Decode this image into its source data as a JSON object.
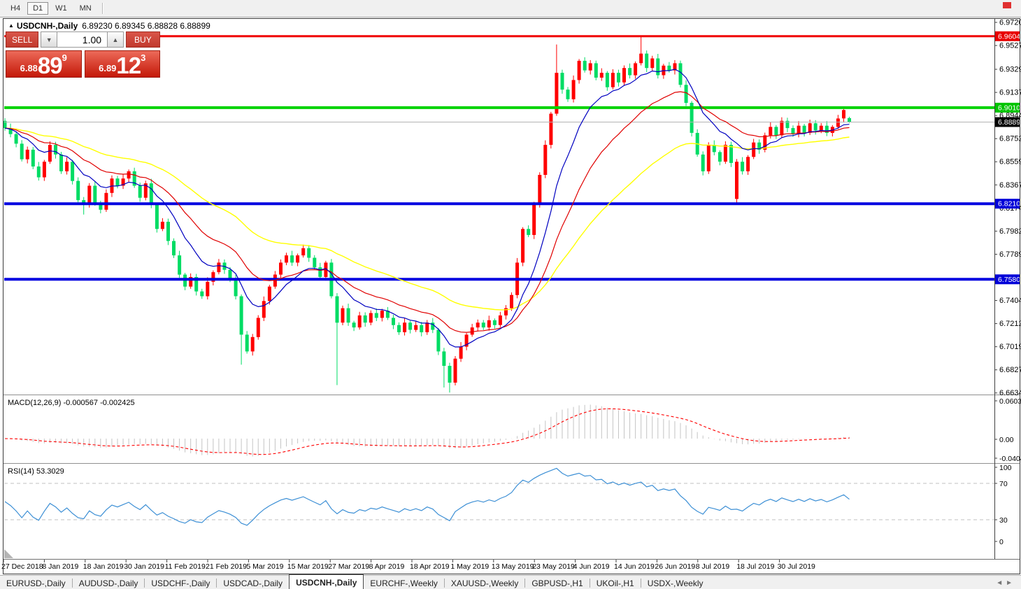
{
  "toolbar": {
    "timeframes": [
      "H4",
      "D1",
      "W1",
      "MN"
    ],
    "active_timeframe": "D1"
  },
  "icons": {
    "title_marker": "▲",
    "spinner_down": "▼",
    "spinner_up": "▲",
    "tab_scroll_left": "◄",
    "tab_scroll_right": "►"
  },
  "window": {
    "symbol_line": "USDCNH-,Daily",
    "ohlc_line": "6.89230 6.89345 6.88828 6.88899"
  },
  "trade": {
    "sell_label": "SELL",
    "buy_label": "BUY",
    "volume": "1.00",
    "sell_price": {
      "prefix": "6.88",
      "big": "89",
      "sup": "9"
    },
    "buy_price": {
      "prefix": "6.89",
      "big": "12",
      "sup": "3"
    }
  },
  "chart_data": {
    "type": "candlestick",
    "title": "USDCNH-,Daily",
    "price_axis": {
      "ticks": [
        "6.97200",
        "6.95275",
        "6.93295",
        "6.91370",
        "6.89445",
        "6.87520",
        "6.85595",
        "6.83670",
        "6.81745",
        "6.79820",
        "6.77895",
        "6.74045",
        "6.72120",
        "6.70195",
        "6.68270",
        "6.66345"
      ],
      "badges": [
        {
          "value": "6.96044",
          "bg": "#e80000"
        },
        {
          "value": "6.90100",
          "bg": "#00c400"
        },
        {
          "value": "6.88899",
          "bg": "#000000"
        },
        {
          "value": "6.82103",
          "bg": "#0000d8"
        },
        {
          "value": "6.75804",
          "bg": "#0000d8"
        }
      ]
    },
    "hlines": [
      {
        "price": 6.88899,
        "color": "#b4b4b4",
        "width": 1
      },
      {
        "price": 6.96044,
        "color": "#f00000",
        "width": 3
      },
      {
        "price": 6.901,
        "color": "#00d300",
        "width": 4
      },
      {
        "price": 6.82103,
        "color": "#0000e0",
        "width": 4
      },
      {
        "price": 6.75804,
        "color": "#0000e0",
        "width": 4
      }
    ],
    "colors": {
      "up_candle": "#ff0000",
      "down_candle": "#00dc64",
      "ma_fast": "#0000c0",
      "ma_medium": "#e00000",
      "ma_slow": "#ffff00",
      "macd_bar": "#c4c4c4",
      "macd_signal": "#ff0000",
      "rsi_line": "#3c8fd5"
    },
    "ma_periods": {
      "fast": 10,
      "medium": 21,
      "slow": 45
    },
    "candles": {
      "first_open": 6.89,
      "gap_opens": {
        "130": 6.825
      },
      "wick_high_overrides": {
        "98": 6.9536,
        "113": 6.9604
      },
      "wick_low_overrides": {
        "14": 6.812,
        "42": 6.687,
        "59": 6.67,
        "78": 6.668,
        "79": 6.6638,
        "130": 6.821
      },
      "last_ohlc": [
        6.8923,
        6.89345,
        6.88828,
        6.88899
      ],
      "closes": [
        6.884,
        6.879,
        6.871,
        6.858,
        6.866,
        6.852,
        6.843,
        6.856,
        6.87,
        6.862,
        6.848,
        6.856,
        6.84,
        6.824,
        6.82,
        6.836,
        6.822,
        6.816,
        6.83,
        6.842,
        6.836,
        6.842,
        6.848,
        6.836,
        6.826,
        6.838,
        6.82,
        6.8,
        6.806,
        6.79,
        6.778,
        6.762,
        6.752,
        6.76,
        6.748,
        6.744,
        6.756,
        6.764,
        6.772,
        6.766,
        6.758,
        6.744,
        6.712,
        6.698,
        6.71,
        6.726,
        6.74,
        6.752,
        6.762,
        6.772,
        6.778,
        6.772,
        6.778,
        6.784,
        6.776,
        6.768,
        6.76,
        6.772,
        6.744,
        6.722,
        6.734,
        6.722,
        6.718,
        6.728,
        6.722,
        6.73,
        6.726,
        6.732,
        6.726,
        6.72,
        6.714,
        6.722,
        6.716,
        6.72,
        6.714,
        6.722,
        6.716,
        6.698,
        6.686,
        6.672,
        6.692,
        6.702,
        6.712,
        6.718,
        6.722,
        6.718,
        6.724,
        6.72,
        6.728,
        6.734,
        6.745,
        6.772,
        6.8,
        6.795,
        6.82,
        6.845,
        6.87,
        6.896,
        6.93,
        6.916,
        6.908,
        6.924,
        6.94,
        6.932,
        6.938,
        6.926,
        6.93,
        6.918,
        6.93,
        6.922,
        6.934,
        6.928,
        6.938,
        6.946,
        6.934,
        6.942,
        6.928,
        6.936,
        6.932,
        6.938,
        6.92,
        6.905,
        6.88,
        6.862,
        6.848,
        6.87,
        6.864,
        6.856,
        6.87,
        6.855,
        6.856,
        6.848,
        6.86,
        6.872,
        6.866,
        6.878,
        6.885,
        6.878,
        6.89,
        6.884,
        6.879,
        6.886,
        6.88,
        6.888,
        6.882,
        6.886,
        6.88,
        6.885,
        6.892,
        6.899,
        6.88899
      ]
    },
    "macd": {
      "title": "MACD(12,26,9)",
      "values": "-0.000567 -0.002425",
      "params": [
        12,
        26,
        9
      ],
      "axis_labels": [
        "0.060342",
        "0.00",
        "-0.040415"
      ]
    },
    "rsi": {
      "title": "RSI(14)",
      "value": "53.3029",
      "period": 14,
      "axis_labels": [
        "100",
        "70",
        "30",
        "0"
      ],
      "levels": [
        70,
        30
      ]
    },
    "dates": [
      "27 Dec 2018",
      "8 Jan 2019",
      "18 Jan 2019",
      "30 Jan 2019",
      "11 Feb 2019",
      "21 Feb 2019",
      "5 Mar 2019",
      "15 Mar 2019",
      "27 Mar 2019",
      "8 Apr 2019",
      "18 Apr 2019",
      "1 May 2019",
      "13 May 2019",
      "23 May 2019",
      "4 Jun 2019",
      "14 Jun 2019",
      "26 Jun 2019",
      "8 Jul 2019",
      "18 Jul 2019",
      "30 Jul 2019"
    ]
  },
  "tabbar": {
    "tabs": [
      "EURUSD-,Daily",
      "AUDUSD-,Daily",
      "USDCHF-,Daily",
      "USDCAD-,Daily",
      "USDCNH-,Daily",
      "EURCHF-,Weekly",
      "XAUUSD-,Weekly",
      "GBPUSD-,H1",
      "UKOil-,H1",
      "USDX-,Weekly"
    ],
    "active_tab": "USDCNH-,Daily"
  }
}
